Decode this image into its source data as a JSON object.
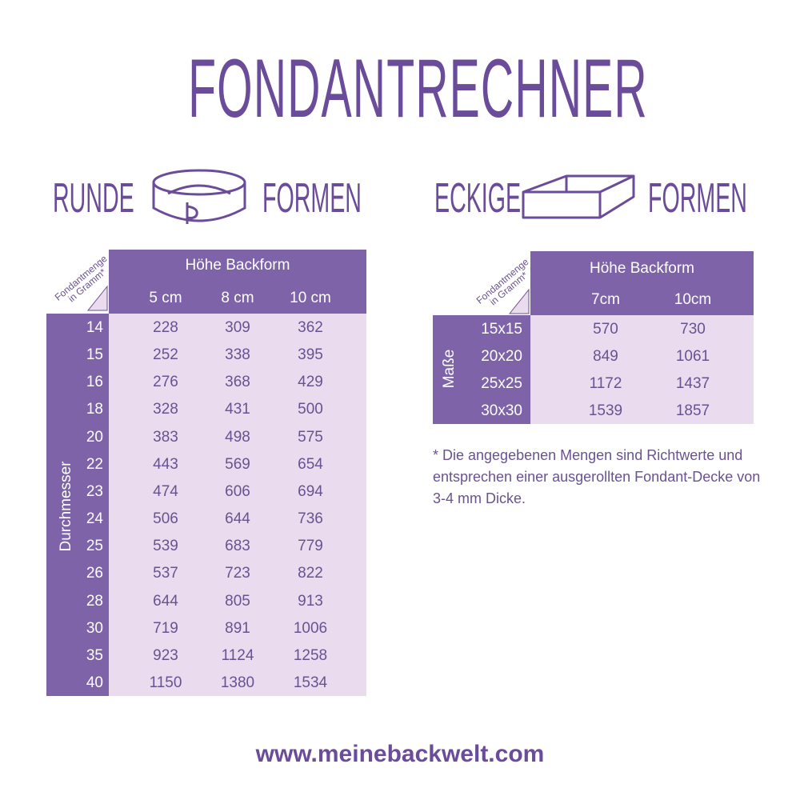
{
  "title": "FONDANTRECHNER",
  "round": {
    "heading_left": "RUNDE",
    "heading_right": "FORMEN",
    "icon": "round-cake-pan-icon",
    "corner_label_1": "Fondantmenge",
    "corner_label_2": "in Gramm*",
    "header": "Höhe Backform",
    "columns": [
      "5 cm",
      "8 cm",
      "10 cm"
    ],
    "row_axis_label": "Durchmesser",
    "rows": [
      {
        "label": "14",
        "values": [
          "228",
          "309",
          "362"
        ]
      },
      {
        "label": "15",
        "values": [
          "252",
          "338",
          "395"
        ]
      },
      {
        "label": "16",
        "values": [
          "276",
          "368",
          "429"
        ]
      },
      {
        "label": "18",
        "values": [
          "328",
          "431",
          "500"
        ]
      },
      {
        "label": "20",
        "values": [
          "383",
          "498",
          "575"
        ]
      },
      {
        "label": "22",
        "values": [
          "443",
          "569",
          "654"
        ]
      },
      {
        "label": "23",
        "values": [
          "474",
          "606",
          "694"
        ]
      },
      {
        "label": "24",
        "values": [
          "506",
          "644",
          "736"
        ]
      },
      {
        "label": "25",
        "values": [
          "539",
          "683",
          "779"
        ]
      },
      {
        "label": "26",
        "values": [
          "537",
          "723",
          "822"
        ]
      },
      {
        "label": "28",
        "values": [
          "644",
          "805",
          "913"
        ]
      },
      {
        "label": "30",
        "values": [
          "719",
          "891",
          "1006"
        ]
      },
      {
        "label": "35",
        "values": [
          "923",
          "1124",
          "1258"
        ]
      },
      {
        "label": "40",
        "values": [
          "1150",
          "1380",
          "1534"
        ]
      }
    ]
  },
  "square": {
    "heading_left": "ECKIGE",
    "heading_right": "FORMEN",
    "icon": "square-cake-pan-icon",
    "corner_label_1": "Fondantmenge",
    "corner_label_2": "in Gramm*",
    "header": "Höhe Backform",
    "columns": [
      "7cm",
      "10cm"
    ],
    "row_axis_label": "Maße",
    "rows": [
      {
        "label": "15x15",
        "values": [
          "570",
          "730"
        ]
      },
      {
        "label": "20x20",
        "values": [
          "849",
          "1061"
        ]
      },
      {
        "label": "25x25",
        "values": [
          "1172",
          "1437"
        ]
      },
      {
        "label": "30x30",
        "values": [
          "1539",
          "1857"
        ]
      }
    ]
  },
  "note": "* Die angegebenen Mengen sind Richtwerte und entsprechen einer ausgerollten Fondant-Decke von 3-4 mm Dicke.",
  "url": "www.meinebackwelt.com",
  "colors": {
    "purple": "#7e63a8",
    "light": "#eadcee",
    "text": "#6a5290"
  }
}
